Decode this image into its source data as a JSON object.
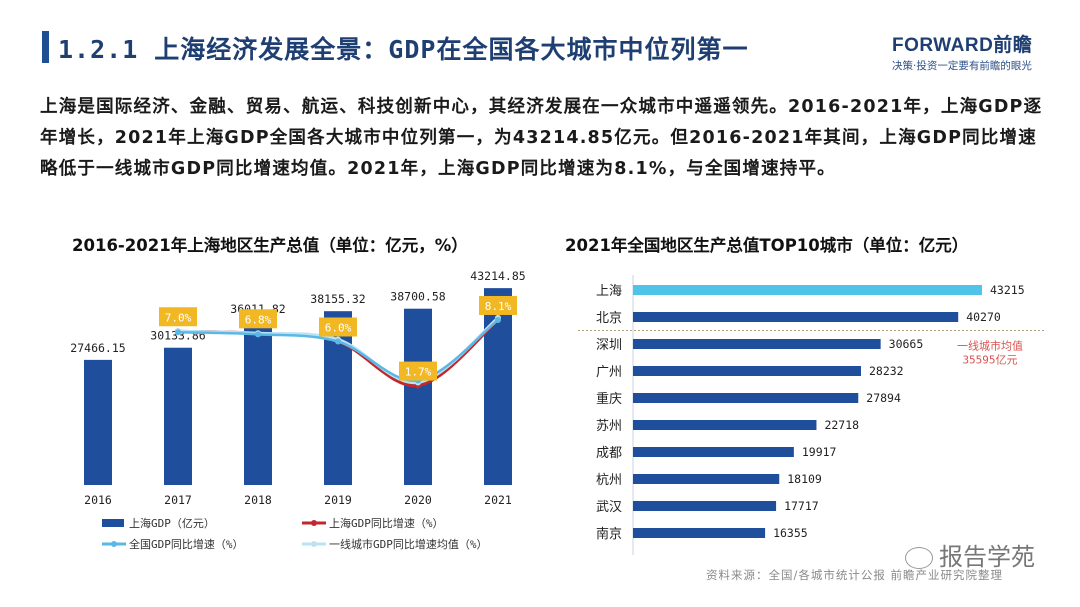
{
  "header": {
    "title": "1.2.1 上海经济发展全景：GDP在全国各大城市中位列第一",
    "logo_main": "FORWARD前瞻",
    "logo_sub": "决策·投资一定要有前瞻的眼光"
  },
  "paragraph": "上海是国际经济、金融、贸易、航运、科技创新中心，其经济发展在一众城市中遥遥领先。2016-2021年，上海GDP逐年增长，2021年上海GDP全国各大城市中位列第一，为43214.85亿元。但2016-2021年其间，上海GDP同比增速略低于一线城市GDP同比增速均值。2021年，上海GDP同比增速为8.1%，与全国增速持平。",
  "footer": {
    "source": "资料来源：全国/各城市统计公报 前瞻产业研究院整理",
    "watermark": "报告学苑"
  },
  "colors": {
    "bar_dark": "#1f4e9c",
    "bar_highlight": "#4fc3e8",
    "label_box": "#f2b824",
    "line_shanghai": "#c0282d",
    "line_national": "#5bb8e6",
    "line_tier1": "#b9e3f3",
    "avg_label": "#d9534f"
  },
  "chart_data": [
    {
      "type": "bar",
      "title": "2016-2021年上海地区生产总值（单位：亿元，%）",
      "categories": [
        "2016",
        "2017",
        "2018",
        "2019",
        "2020",
        "2021"
      ],
      "series": [
        {
          "name": "上海GDP（亿元）",
          "type": "bar",
          "values": [
            27466.15,
            30133.86,
            36011.82,
            38155.32,
            38700.58,
            43214.85
          ],
          "labels": [
            "27466.15",
            "30133.86",
            "36011.82",
            "38155.32",
            "38700.58",
            "43214.85"
          ]
        },
        {
          "name": "上海GDP同比增速（%）",
          "type": "line",
          "values": [
            null,
            7.0,
            6.8,
            6.0,
            1.7,
            8.1
          ],
          "labels": [
            "",
            "7.0%",
            "6.8%",
            "6.0%",
            "1.7%",
            "8.1%"
          ]
        },
        {
          "name": "全国GDP同比增速（%）",
          "type": "line",
          "values": [
            null,
            6.9,
            6.7,
            6.0,
            2.2,
            8.1
          ]
        },
        {
          "name": "一线城市GDP同比增速均值（%）",
          "type": "line",
          "values": [
            null,
            7.0,
            6.8,
            6.2,
            2.0,
            8.3
          ]
        }
      ],
      "ylim_bar": [
        0,
        45000
      ],
      "ylim_line": [
        -8,
        12
      ],
      "legend_position": "bottom"
    },
    {
      "type": "bar",
      "orientation": "horizontal",
      "title": "2021年全国地区生产总值TOP10城市（单位：亿元）",
      "categories": [
        "上海",
        "北京",
        "深圳",
        "广州",
        "重庆",
        "苏州",
        "成都",
        "杭州",
        "武汉",
        "南京"
      ],
      "values": [
        43215,
        40270,
        30665,
        28232,
        27894,
        22718,
        19917,
        18109,
        17717,
        16355
      ],
      "highlight": "上海",
      "annotation": {
        "text_line1": "一线城市均值",
        "text_line2": "35595亿元",
        "value": 35595
      },
      "xlim": [
        0,
        45000
      ]
    }
  ]
}
